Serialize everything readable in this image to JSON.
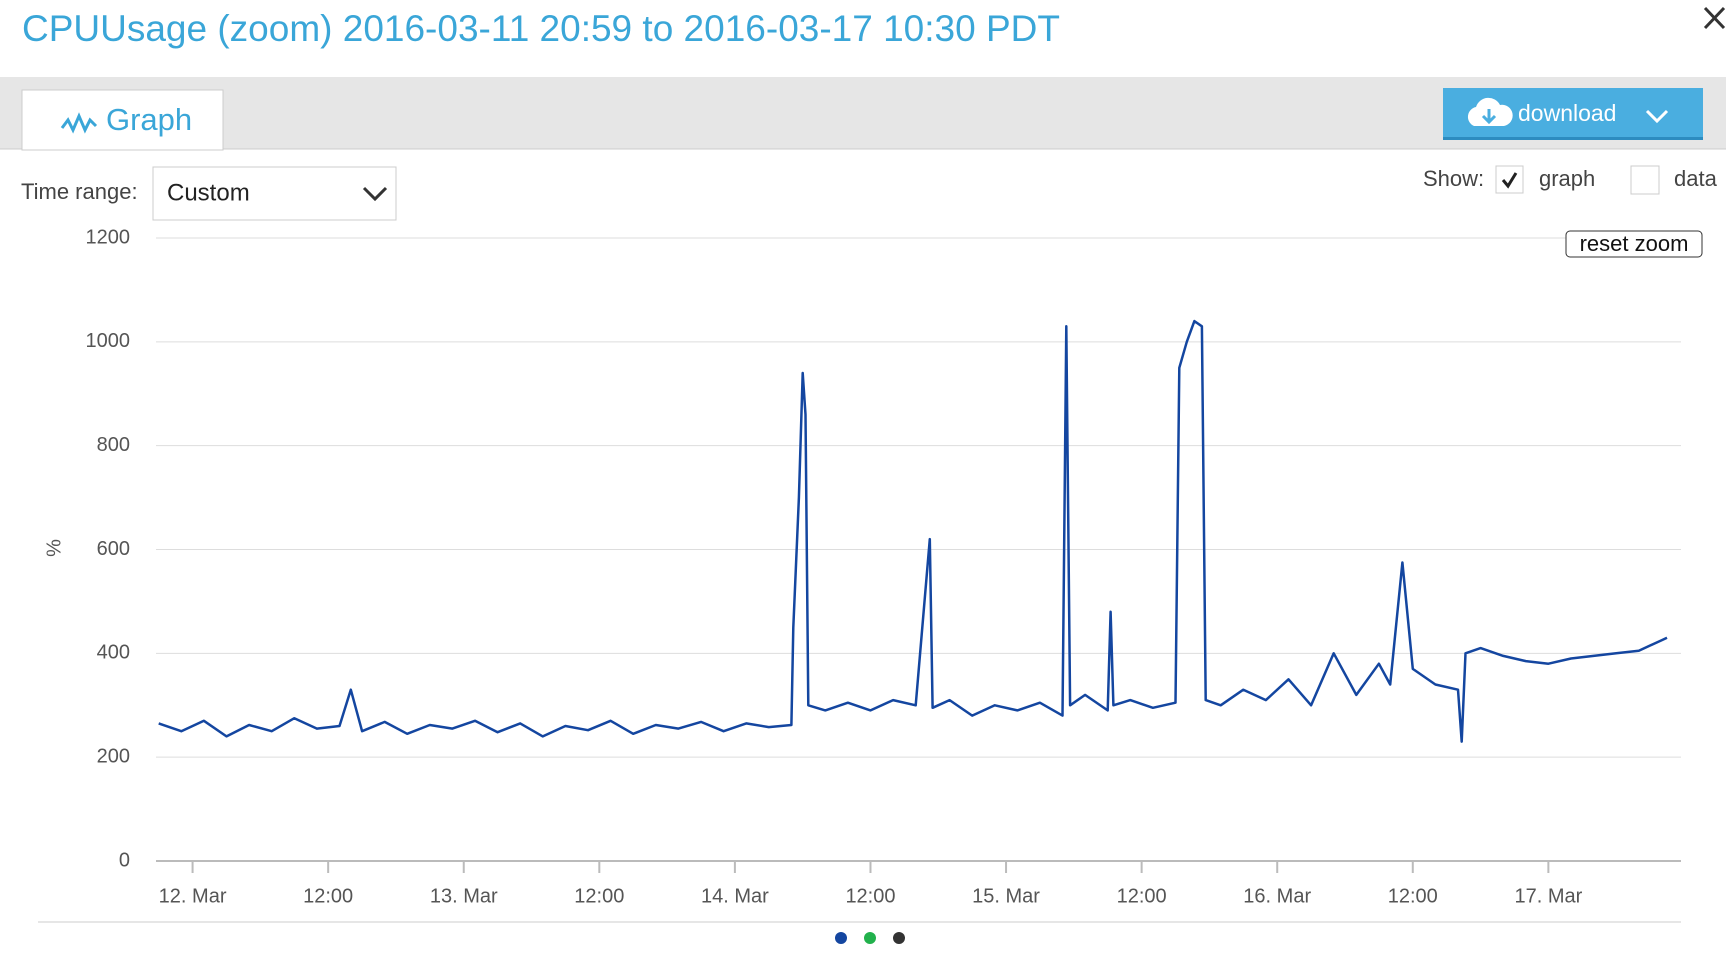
{
  "header": {
    "title": "CPUUsage (zoom) 2016-03-11 20:59 to 2016-03-17 10:30 PDT"
  },
  "ui": {
    "tab": "Graph",
    "download": "download",
    "time_range_label": "Time range:",
    "time_range_value": "Custom",
    "show_label": "Show:",
    "show_graph": "graph",
    "show_data": "data",
    "reset_zoom": "reset zoom"
  },
  "chart_data": {
    "type": "line",
    "y_label": "%",
    "color": "#1446a0",
    "grid": true,
    "xlim": [
      "2016-03-11 20:59",
      "2016-03-17 10:30"
    ],
    "ylim": [
      0,
      1200
    ],
    "yticks": [
      0,
      200,
      400,
      600,
      800,
      1000,
      1200
    ],
    "xticks": [
      {
        "value": "2016-03-12 00:00",
        "label": "12. Mar"
      },
      {
        "value": "2016-03-12 12:00",
        "label": "12:00"
      },
      {
        "value": "2016-03-13 00:00",
        "label": "13. Mar"
      },
      {
        "value": "2016-03-13 12:00",
        "label": "12:00"
      },
      {
        "value": "2016-03-14 00:00",
        "label": "14. Mar"
      },
      {
        "value": "2016-03-14 12:00",
        "label": "12:00"
      },
      {
        "value": "2016-03-15 00:00",
        "label": "15. Mar"
      },
      {
        "value": "2016-03-15 12:00",
        "label": "12:00"
      },
      {
        "value": "2016-03-16 00:00",
        "label": "16. Mar"
      },
      {
        "value": "2016-03-16 12:00",
        "label": "12:00"
      },
      {
        "value": "2016-03-17 00:00",
        "label": "17. Mar"
      }
    ],
    "x": [
      "2016-03-11 21:00",
      "2016-03-11 23:00",
      "2016-03-12 01:00",
      "2016-03-12 03:00",
      "2016-03-12 05:00",
      "2016-03-12 07:00",
      "2016-03-12 09:00",
      "2016-03-12 11:00",
      "2016-03-12 13:00",
      "2016-03-12 14:00",
      "2016-03-12 15:00",
      "2016-03-12 17:00",
      "2016-03-12 19:00",
      "2016-03-12 21:00",
      "2016-03-12 23:00",
      "2016-03-13 01:00",
      "2016-03-13 03:00",
      "2016-03-13 05:00",
      "2016-03-13 07:00",
      "2016-03-13 09:00",
      "2016-03-13 11:00",
      "2016-03-13 13:00",
      "2016-03-13 15:00",
      "2016-03-13 17:00",
      "2016-03-13 19:00",
      "2016-03-13 21:00",
      "2016-03-13 23:00",
      "2016-03-14 01:00",
      "2016-03-14 03:00",
      "2016-03-14 05:00",
      "2016-03-14 05:10",
      "2016-03-14 05:40",
      "2016-03-14 06:00",
      "2016-03-14 06:15",
      "2016-03-14 06:30",
      "2016-03-14 08:00",
      "2016-03-14 10:00",
      "2016-03-14 12:00",
      "2016-03-14 14:00",
      "2016-03-14 16:00",
      "2016-03-14 17:15",
      "2016-03-14 17:30",
      "2016-03-14 19:00",
      "2016-03-14 21:00",
      "2016-03-14 23:00",
      "2016-03-15 01:00",
      "2016-03-15 03:00",
      "2016-03-15 05:00",
      "2016-03-15 05:20",
      "2016-03-15 05:40",
      "2016-03-15 07:00",
      "2016-03-15 09:00",
      "2016-03-15 09:15",
      "2016-03-15 09:30",
      "2016-03-15 11:00",
      "2016-03-15 13:00",
      "2016-03-15 15:00",
      "2016-03-15 15:20",
      "2016-03-15 16:00",
      "2016-03-15 16:40",
      "2016-03-15 17:20",
      "2016-03-15 17:40",
      "2016-03-15 19:00",
      "2016-03-15 21:00",
      "2016-03-15 23:00",
      "2016-03-16 01:00",
      "2016-03-16 03:00",
      "2016-03-16 05:00",
      "2016-03-16 07:00",
      "2016-03-16 09:00",
      "2016-03-16 10:00",
      "2016-03-16 11:05",
      "2016-03-16 12:00",
      "2016-03-16 14:00",
      "2016-03-16 16:00",
      "2016-03-16 16:20",
      "2016-03-16 16:40",
      "2016-03-16 18:00",
      "2016-03-16 20:00",
      "2016-03-16 22:00",
      "2016-03-17 00:00",
      "2016-03-17 02:00",
      "2016-03-17 04:00",
      "2016-03-17 06:00",
      "2016-03-17 08:00",
      "2016-03-17 10:00",
      "2016-03-17 10:30"
    ],
    "values": [
      265,
      250,
      270,
      240,
      262,
      250,
      275,
      255,
      260,
      330,
      250,
      268,
      245,
      262,
      255,
      270,
      248,
      265,
      240,
      260,
      252,
      270,
      245,
      262,
      255,
      268,
      250,
      265,
      258,
      262,
      450,
      700,
      940,
      860,
      300,
      290,
      305,
      290,
      310,
      300,
      620,
      295,
      310,
      280,
      300,
      290,
      305,
      280,
      1030,
      300,
      320,
      290,
      480,
      300,
      310,
      295,
      305,
      950,
      1000,
      1040,
      1030,
      310,
      300,
      330,
      310,
      350,
      300,
      400,
      320,
      380,
      340,
      575,
      370,
      340,
      330,
      230,
      400,
      410,
      395,
      385,
      380,
      390,
      395,
      400,
      405,
      425,
      430
    ]
  }
}
